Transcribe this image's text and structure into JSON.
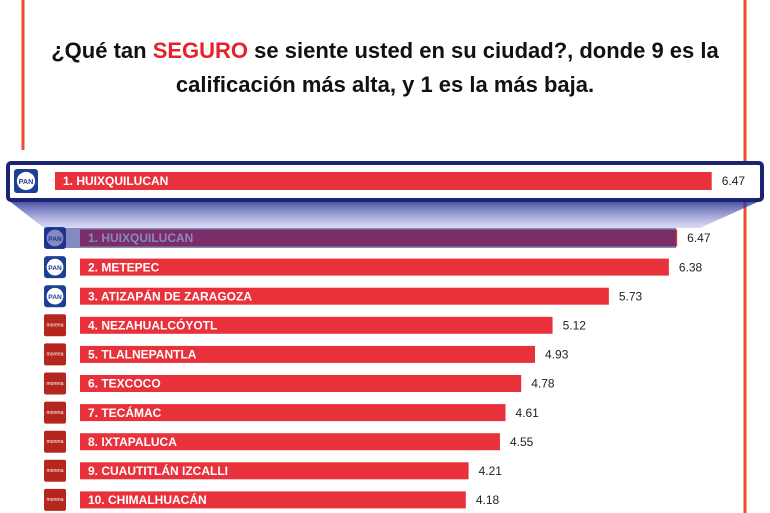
{
  "chart_data": {
    "type": "bar",
    "orientation": "horizontal",
    "title_line_1": {
      "before": "¿Qué tan ",
      "emphasis": "SEGURO",
      "after": " se siente usted en su ciudad?, donde 9 es la"
    },
    "title_line_2": "calificación más alta, y  1 es la más baja.",
    "emphasis_color": "#e5222b",
    "categories": [
      "1. HUIXQUILUCAN",
      "2. METEPEC",
      "3. ATIZAPÁN DE ZARAGOZA",
      "4. NEZAHUALCÓYOTL",
      "5. TLALNEPANTLA",
      "6. TEXCOCO",
      "7. TECÁMAC",
      "8. IXTAPALUCA",
      "9. CUAUTITLÁN IZCALLI",
      "10. CHIMALHUACÁN"
    ],
    "values": [
      6.47,
      6.38,
      5.73,
      5.12,
      4.93,
      4.78,
      4.61,
      4.55,
      4.21,
      4.18
    ],
    "parties": [
      "PAN",
      "PAN",
      "PAN",
      "morena",
      "morena",
      "morena",
      "morena",
      "morena",
      "morena",
      "morena"
    ],
    "color": "#e8313b"
  }
}
